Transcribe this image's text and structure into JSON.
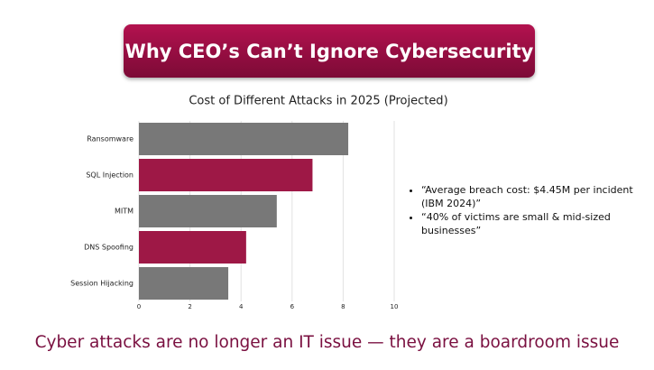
{
  "slide_title": "Why CEO’s Can’t Ignore Cybersecurity",
  "chart_data": {
    "type": "hbar",
    "title": "Cost of Different Attacks in 2025 (Projected)",
    "categories": [
      "Ransomware",
      "SQL Injection",
      "MITM",
      "DNS Spoofing",
      "Session Hijacking"
    ],
    "values": [
      8.2,
      6.8,
      5.4,
      4.2,
      3.5
    ],
    "colors": [
      "#787878",
      "#9e1846",
      "#787878",
      "#9e1846",
      "#787878"
    ],
    "xlim": [
      0,
      10
    ],
    "xticks": [
      0,
      2,
      4,
      6,
      8,
      10
    ],
    "grid": true
  },
  "notes": [
    "“Average breach cost: $4.45M per incident (IBM 2024)”",
    " “40% of victims are small & mid-sized businesses”"
  ],
  "footer": "Cyber attacks are no longer an IT issue — they are a boardroom issue"
}
